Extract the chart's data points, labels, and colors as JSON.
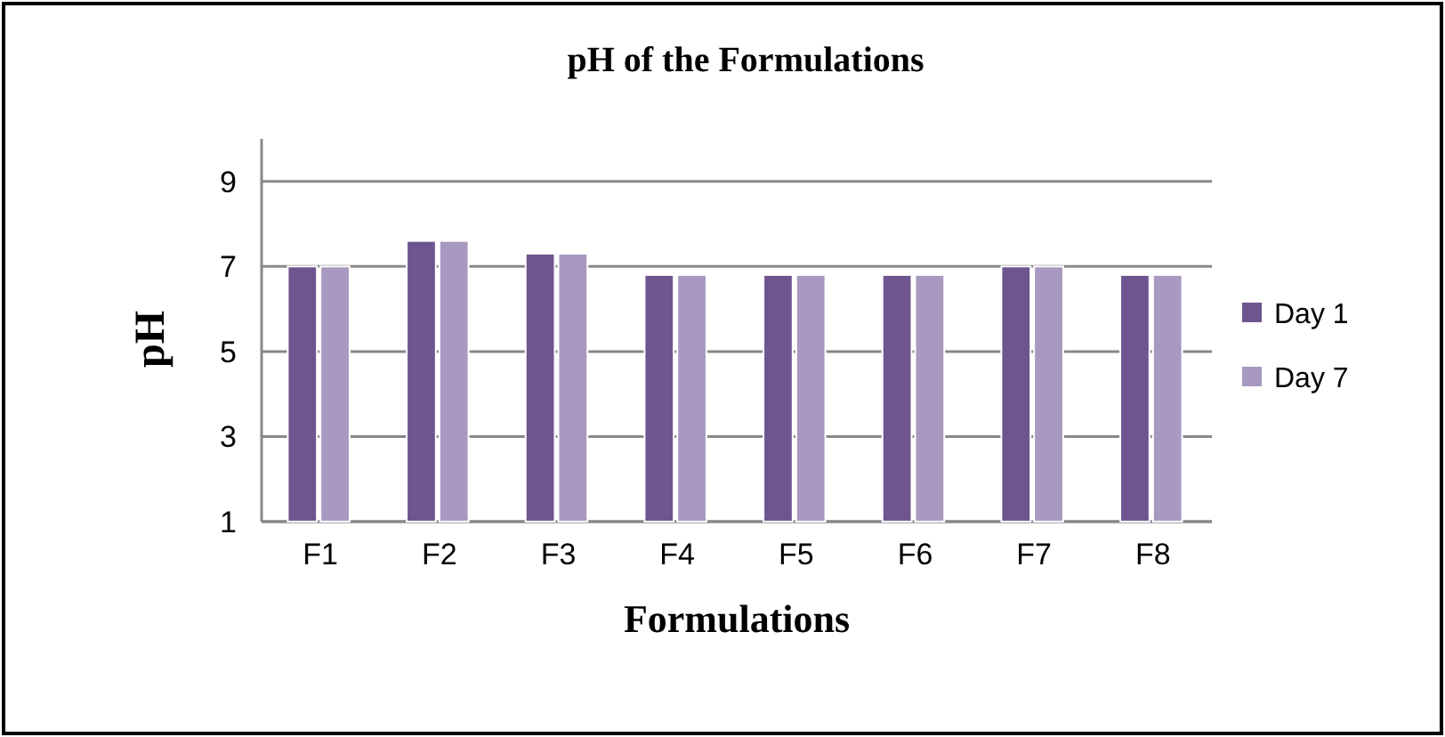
{
  "chart_data": {
    "type": "bar",
    "title": "pH of the Formulations",
    "xlabel": "Formulations",
    "ylabel": "pH",
    "categories": [
      "F1",
      "F2",
      "F3",
      "F4",
      "F5",
      "F6",
      "F7",
      "F8"
    ],
    "series": [
      {
        "name": "Day 1",
        "color": "#6e5590",
        "values": [
          7.0,
          7.6,
          7.3,
          6.8,
          6.8,
          6.8,
          7.0,
          6.8
        ]
      },
      {
        "name": "Day 7",
        "color": "#a899c0",
        "values": [
          7.0,
          7.6,
          7.3,
          6.8,
          6.8,
          6.8,
          7.0,
          6.8
        ]
      }
    ],
    "ylim": [
      1,
      10
    ],
    "yticks": [
      1,
      3,
      5,
      7,
      9
    ],
    "grid": "y",
    "legend": "right"
  }
}
